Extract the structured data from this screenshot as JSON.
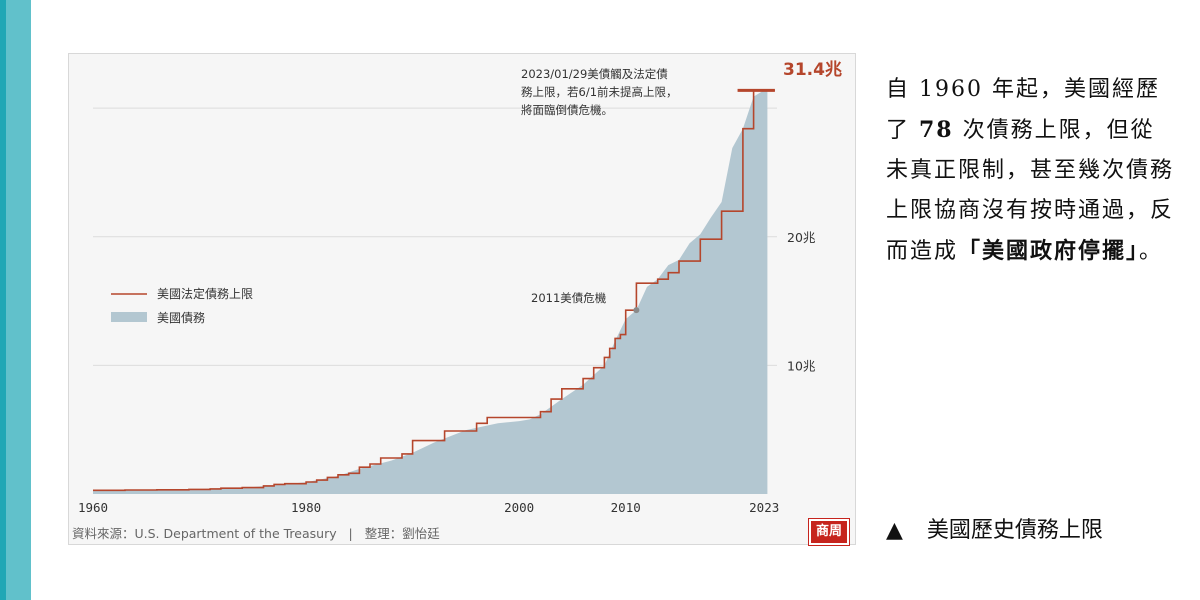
{
  "article": {
    "paragraph_parts": [
      {
        "text": "自 1960 年起，美國經歷了 ",
        "bold": false
      },
      {
        "text": "78",
        "bold": true
      },
      {
        "text": " 次債務上限，但從未真正限制，甚至幾次債務上限協商沒有按時通過，反而造成",
        "bold": false
      },
      {
        "text": "「美國政府停擺」",
        "bold": true
      },
      {
        "text": "。",
        "bold": false
      }
    ],
    "caption_marker": "▲",
    "caption": "美國歷史債務上限"
  },
  "chart_data": {
    "type": "area",
    "x_ticks": [
      "1960",
      "1980",
      "2000",
      "2010",
      "2023"
    ],
    "xlim": [
      1960,
      2024.2
    ],
    "ylim": [
      0,
      32.5
    ],
    "y_ticks": [
      {
        "value": 10,
        "label": "10兆"
      },
      {
        "value": 20,
        "label": "20兆"
      }
    ],
    "legend": [
      {
        "name": "美國法定債務上限",
        "type": "line",
        "color": "#b5462c"
      },
      {
        "name": "美國債務",
        "type": "area",
        "color": "#b3c7d1"
      }
    ],
    "series": [
      {
        "name": "美國法定債務上限",
        "type": "step",
        "color": "#b5462c",
        "points": [
          [
            1960,
            0.29
          ],
          [
            1963,
            0.31
          ],
          [
            1966,
            0.33
          ],
          [
            1969,
            0.36
          ],
          [
            1971,
            0.4
          ],
          [
            1972,
            0.45
          ],
          [
            1974,
            0.5
          ],
          [
            1976,
            0.63
          ],
          [
            1977,
            0.75
          ],
          [
            1978,
            0.8
          ],
          [
            1980,
            0.93
          ],
          [
            1981,
            1.08
          ],
          [
            1982,
            1.29
          ],
          [
            1983,
            1.49
          ],
          [
            1984,
            1.61
          ],
          [
            1985,
            2.08
          ],
          [
            1986,
            2.33
          ],
          [
            1987,
            2.8
          ],
          [
            1989,
            3.12
          ],
          [
            1990,
            4.15
          ],
          [
            1993,
            4.9
          ],
          [
            1996,
            5.5
          ],
          [
            1997,
            5.95
          ],
          [
            2002,
            6.4
          ],
          [
            2003,
            7.38
          ],
          [
            2004,
            8.18
          ],
          [
            2006,
            8.97
          ],
          [
            2007,
            9.82
          ],
          [
            2008,
            10.62
          ],
          [
            2008.5,
            11.32
          ],
          [
            2009,
            12.1
          ],
          [
            2009.5,
            12.39
          ],
          [
            2010,
            14.29
          ],
          [
            2011,
            16.39
          ],
          [
            2013,
            16.7
          ],
          [
            2014,
            17.21
          ],
          [
            2015,
            18.11
          ],
          [
            2017,
            19.81
          ],
          [
            2019,
            21.99
          ],
          [
            2021,
            28.4
          ],
          [
            2022,
            31.38
          ],
          [
            2024,
            31.38
          ]
        ]
      },
      {
        "name": "美國債務",
        "type": "area",
        "color": "#b3c7d1",
        "points": [
          [
            1960,
            0.29
          ],
          [
            1965,
            0.32
          ],
          [
            1970,
            0.38
          ],
          [
            1975,
            0.54
          ],
          [
            1980,
            0.91
          ],
          [
            1983,
            1.4
          ],
          [
            1985,
            1.95
          ],
          [
            1988,
            2.6
          ],
          [
            1990,
            3.2
          ],
          [
            1992,
            4.0
          ],
          [
            1995,
            4.97
          ],
          [
            1998,
            5.5
          ],
          [
            2000,
            5.67
          ],
          [
            2001,
            5.8
          ],
          [
            2002,
            6.2
          ],
          [
            2003,
            6.78
          ],
          [
            2004,
            7.38
          ],
          [
            2006,
            8.5
          ],
          [
            2008,
            10.0
          ],
          [
            2009,
            11.9
          ],
          [
            2010,
            13.6
          ],
          [
            2011,
            14.3
          ],
          [
            2012,
            16.1
          ],
          [
            2013,
            16.7
          ],
          [
            2014,
            17.8
          ],
          [
            2015,
            18.2
          ],
          [
            2016,
            19.5
          ],
          [
            2017,
            20.2
          ],
          [
            2018,
            21.5
          ],
          [
            2019,
            22.7
          ],
          [
            2020,
            26.9
          ],
          [
            2021,
            28.4
          ],
          [
            2022,
            30.9
          ],
          [
            2023,
            31.4
          ],
          [
            2023.3,
            31.4
          ]
        ]
      }
    ],
    "annotations": {
      "cap_value_label": "31.4兆",
      "top_note_lines": [
        "2023/01/29美債觸及法定債",
        "務上限，若6/1前未提高上限，",
        "將面臨倒債危機。"
      ],
      "crisis_label": "2011美債危機",
      "crisis_point": [
        2011,
        14.3
      ]
    },
    "source": "資料來源：U.S. Department of the Treasury",
    "separator": "|",
    "editor": "整理：劉怡廷",
    "brand": "商周"
  }
}
